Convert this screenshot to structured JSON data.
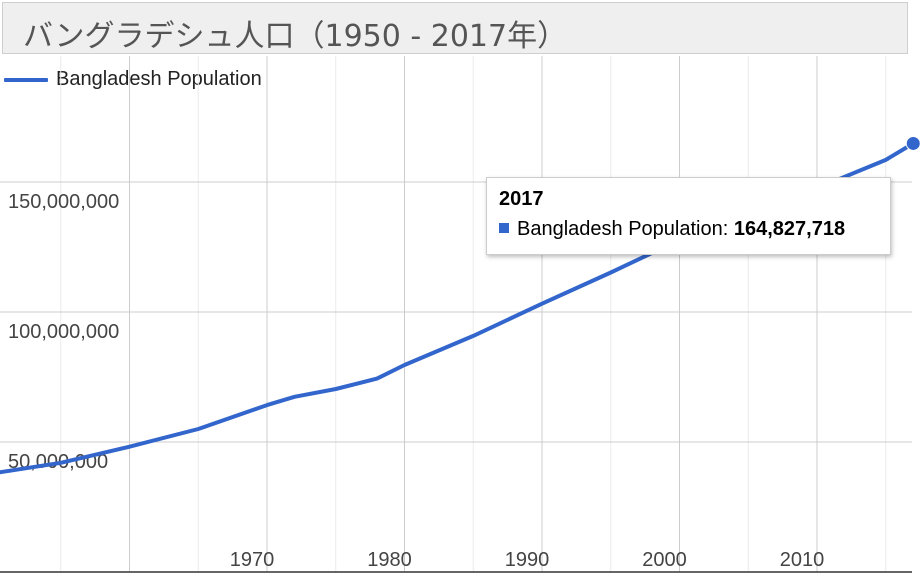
{
  "title": "バングラデシュ人口（1950 - 2017年）",
  "legend": {
    "label": "Bangladesh Population",
    "color": "#3366cc"
  },
  "tooltip": {
    "year": "2017",
    "label": "Bangladesh Population:",
    "value": "164,827,718"
  },
  "chart_data": {
    "type": "line",
    "title": "バングラデシュ人口（1950 - 2017年）",
    "xlabel": "",
    "ylabel": "",
    "xlim": [
      1950,
      2017
    ],
    "ylim": [
      0,
      175000000
    ],
    "x_ticks": [
      1970,
      1980,
      1990,
      2000,
      2010
    ],
    "x_tick_labels": [
      "1970",
      "1980",
      "1990",
      "2000",
      "2010"
    ],
    "y_ticks": [
      50000000,
      100000000,
      150000000
    ],
    "y_tick_labels": [
      "50,000,000",
      "100,000,000",
      "150,000,000"
    ],
    "grid": true,
    "legend_position": "top-left",
    "series": [
      {
        "name": "Bangladesh Population",
        "color": "#3366cc",
        "x": [
          1950,
          1955,
          1960,
          1965,
          1970,
          1972,
          1975,
          1978,
          1980,
          1985,
          1990,
          1995,
          2000,
          2005,
          2010,
          2015,
          2017
        ],
        "y": [
          37900000,
          42000000,
          48200000,
          55000000,
          64200000,
          67400000,
          70400000,
          74400000,
          79600000,
          90800000,
          103200000,
          115200000,
          127700000,
          138800000,
          147600000,
          158500000,
          164827718
        ]
      }
    ]
  }
}
